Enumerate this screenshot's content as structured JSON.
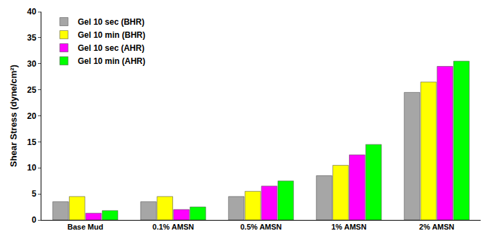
{
  "chart_data": {
    "type": "bar",
    "y_label": "Shear Stress (dyne/cm²)",
    "categories": [
      "Base Mud",
      "0.1% AMSN",
      "0.5% AMSN",
      "1% AMSN",
      "2% AMSN"
    ],
    "series": [
      {
        "name": "Gel 10 sec (BHR)",
        "color": "#a6a6a6",
        "values": [
          3.5,
          3.5,
          4.5,
          8.5,
          24.5
        ]
      },
      {
        "name": "Gel 10 min (BHR)",
        "color": "#ffff00",
        "values": [
          4.5,
          4.5,
          5.5,
          10.5,
          26.5
        ]
      },
      {
        "name": "Gel 10 sec (AHR)",
        "color": "#ff00ff",
        "values": [
          1.3,
          2.0,
          6.5,
          12.5,
          29.5
        ]
      },
      {
        "name": "Gel 10 min (AHR)",
        "color": "#00ff00",
        "values": [
          1.8,
          2.5,
          7.5,
          14.5,
          30.5
        ]
      }
    ],
    "ylim": [
      0,
      40
    ],
    "yticks": [
      0,
      5,
      10,
      15,
      20,
      25,
      30,
      35,
      40
    ],
    "grid": false,
    "legend": "upper left"
  }
}
